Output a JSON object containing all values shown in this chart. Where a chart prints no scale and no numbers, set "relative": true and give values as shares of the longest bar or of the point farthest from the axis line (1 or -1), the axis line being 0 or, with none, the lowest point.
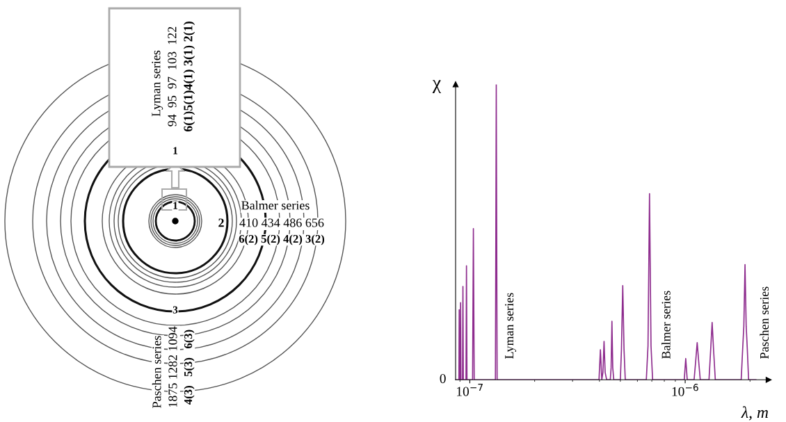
{
  "chart_data": [
    {
      "type": "other",
      "annotations": [
        "Lyman series",
        "94  95  97  103  122",
        "6(1)5(1)4(1) 3(1) 2(1)",
        "1",
        "1",
        "Balmer series",
        "2",
        "410 434 486 656",
        "6(2) 5(2) 4(2) 3(2)",
        "3",
        "Paschen series",
        "1875 1282 1094",
        "4(3)   5(3)   6(3)"
      ]
    },
    {
      "type": "line",
      "relative": true,
      "log": "x",
      "color": "#8e2c8e",
      "xlabel": "λ, m",
      "ylabel": "χ",
      "xlim": [
        8.59e-08,
        2.44e-06
      ],
      "xticks": [
        {
          "value": 1e-07,
          "label": "10$^{−7}$"
        },
        {
          "value": 1e-06,
          "label": "10$^{−6}$"
        }
      ],
      "grid": false,
      "x": [
        8.59e-08,
        8.9e-08,
        8.93e-08,
        8.96e-08,
        9.03e-08,
        9.06e-08,
        9.09e-08,
        9.25e-08,
        9.29e-08,
        9.33e-08,
        9.6e-08,
        9.65e-08,
        9.7e-08,
        1.03e-07,
        1.039e-07,
        1.048e-07,
        1.315e-07,
        1.327e-07,
        1.339e-07,
        3.98e-07,
        4.04e-07,
        4.1e-07,
        4.15e-07,
        4.2e-07,
        4.25e-07,
        4.32e-07,
        4.49e-07,
        4.53e-07,
        4.57e-07,
        4.61e-07,
        4.66e-07,
        5e-07,
        5.06e-07,
        5.13e-07,
        5.2e-07,
        5.27e-07,
        6.6e-07,
        6.72e-07,
        6.83e-07,
        6.94e-07,
        7.06e-07,
        9.9e-07,
        1.006e-06,
        1.022e-06,
        1.1e-06,
        1.118e-06,
        1.137e-06,
        1.156e-06,
        1.175e-06,
        1.29e-06,
        1.312e-06,
        1.334e-06,
        1.356e-06,
        1.38e-06,
        1.82e-06,
        1.85e-06,
        1.872e-06,
        1.896e-06,
        1.92e-06,
        1.942e-06,
        1.97e-06,
        2.13e-06
      ],
      "values": [
        0,
        0,
        0.237,
        0,
        0,
        0.261,
        0,
        0,
        0.316,
        0,
        0,
        0.386,
        0,
        0,
        0.512,
        0,
        0,
        1,
        0,
        0,
        0.102,
        0,
        0.025,
        0.13,
        0.025,
        0,
        0,
        0.041,
        0.198,
        0.041,
        0,
        0,
        0.104,
        0.319,
        0.104,
        0,
        0,
        0.115,
        0.63,
        0.115,
        0,
        0,
        0.072,
        0,
        0,
        0.06,
        0.126,
        0.06,
        0,
        0,
        0.096,
        0.194,
        0.096,
        0,
        0,
        0.108,
        0.181,
        0.39,
        0.181,
        0.108,
        0,
        0
      ],
      "annotations": [
        "0",
        "Lyman series",
        "Balmer series",
        "Paschen series"
      ]
    }
  ]
}
